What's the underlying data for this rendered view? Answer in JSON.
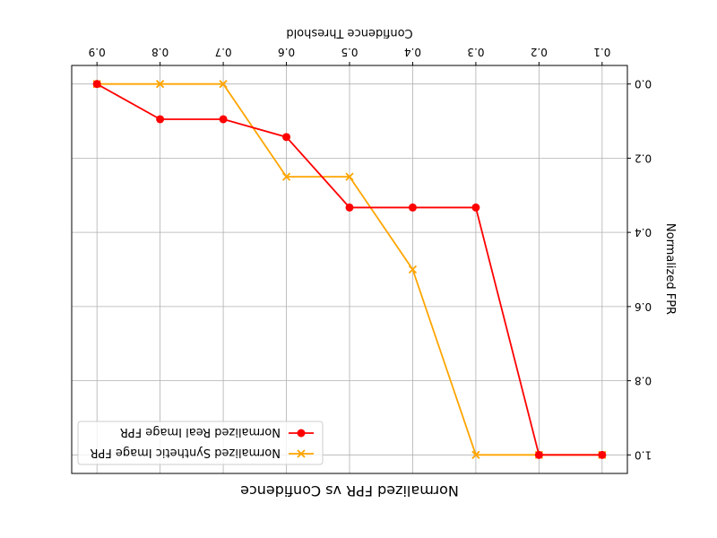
{
  "chart_data": {
    "type": "line",
    "title": "Normalized FPR vs Confidence",
    "xlabel": "Confidence Threshold",
    "ylabel": "Normalized FPR",
    "x": [
      0.1,
      0.2,
      0.3,
      0.4,
      0.5,
      0.6,
      0.7,
      0.8,
      0.9
    ],
    "x_tick_labels": [
      "0.1",
      "0.2",
      "0.3",
      "0.4",
      "0.5",
      "0.6",
      "0.7",
      "0.8",
      "0.9"
    ],
    "y_tick_labels": [
      "0.0",
      "0.2",
      "0.4",
      "0.6",
      "0.8",
      "1.0"
    ],
    "y_ticks": [
      0.0,
      0.2,
      0.4,
      0.6,
      0.8,
      1.0
    ],
    "xlim": [
      0.06,
      0.94
    ],
    "ylim": [
      -0.05,
      1.05
    ],
    "grid": true,
    "legend_position": "upper-left",
    "series": [
      {
        "name": "Normalized Real Image FPR",
        "color": "#ff0000",
        "marker": "circle",
        "values": [
          1.0,
          1.0,
          0.333,
          0.333,
          0.333,
          0.143,
          0.095,
          0.095,
          0.0
        ]
      },
      {
        "name": "Normalized Synthetic Image FPR",
        "color": "#ffa500",
        "marker": "x",
        "values": [
          1.0,
          1.0,
          1.0,
          0.5,
          0.25,
          0.25,
          0.0,
          0.0,
          0.0
        ]
      }
    ]
  }
}
